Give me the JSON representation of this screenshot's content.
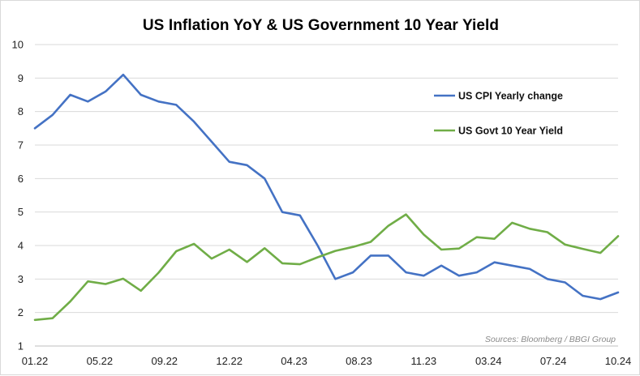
{
  "chart_data": {
    "type": "line",
    "title": "US Inflation YoY & US Government 10 Year Yield",
    "x_tick_labels": [
      "01.22",
      "05.22",
      "09.22",
      "12.22",
      "04.23",
      "08.23",
      "11.23",
      "03.24",
      "07.24",
      "10.24"
    ],
    "ylim": [
      1,
      10
    ],
    "y_ticks": [
      1,
      2,
      3,
      4,
      5,
      6,
      7,
      8,
      9,
      10
    ],
    "grid": "horizontal",
    "legend_placement": "right",
    "source": "Sources: Bloomberg / BBGI Group",
    "series": [
      {
        "name": "US CPI Yearly change",
        "color": "#4472C4",
        "values": [
          7.5,
          7.9,
          8.5,
          8.3,
          8.6,
          9.1,
          8.5,
          8.3,
          8.2,
          7.7,
          7.1,
          6.5,
          6.4,
          6.0,
          5.0,
          4.9,
          4.0,
          3.0,
          3.2,
          3.7,
          3.7,
          3.2,
          3.1,
          3.4,
          3.1,
          3.2,
          3.5,
          3.4,
          3.3,
          3.0,
          2.9,
          2.5,
          2.4,
          2.6
        ]
      },
      {
        "name": "US Govt 10 Year Yield",
        "color": "#70AD47",
        "values": [
          1.78,
          1.83,
          2.33,
          2.93,
          2.85,
          3.01,
          2.65,
          3.19,
          3.83,
          4.05,
          3.61,
          3.88,
          3.51,
          3.92,
          3.47,
          3.44,
          3.65,
          3.84,
          3.96,
          4.11,
          4.59,
          4.93,
          4.33,
          3.88,
          3.91,
          4.25,
          4.2,
          4.68,
          4.5,
          4.4,
          4.03,
          3.9,
          3.78,
          4.28
        ]
      }
    ]
  }
}
